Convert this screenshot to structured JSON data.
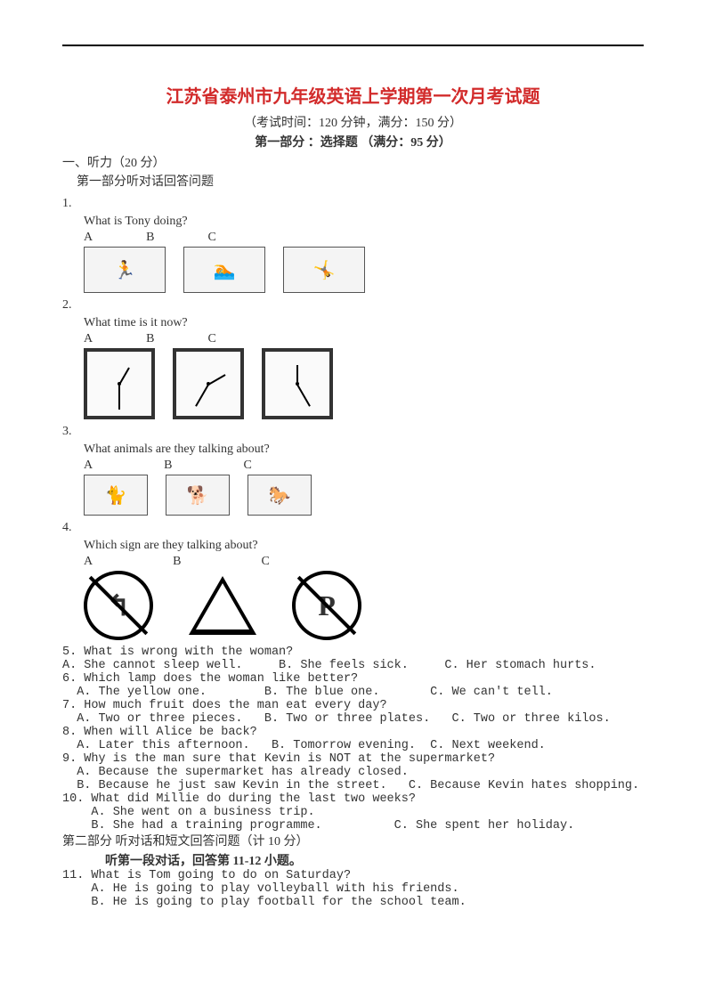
{
  "title": "江苏省泰州市九年级英语上学期第一次月考试题",
  "subtitle": "（考试时间：120 分钟，满分：150 分）",
  "part1": "第一部分 ：选择题 （满分：95 分）",
  "listening_header": "一、听力（20 分）",
  "listening_sub": "第一部分听对话回答问题",
  "q1": {
    "num": "1.",
    "text": "What is Tony doing?"
  },
  "q2": {
    "num": "2.",
    "text": "What time is it now?"
  },
  "q3": {
    "num": "3.",
    "text": "What animals are they talking about?"
  },
  "q4": {
    "num": "4.",
    "text": "Which sign are they talking about?"
  },
  "abc": {
    "a": "A",
    "b": "B",
    "c": "C"
  },
  "q5": "5. What is wrong with the woman?",
  "q5a": "A. She cannot sleep well.     B. She feels sick.     C. Her stomach hurts.",
  "q6": "6. Which lamp does the woman like better?",
  "q6a": "  A. The yellow one.        B. The blue one.       C. We can't tell.",
  "q7": "7. How much fruit does the man eat every day?",
  "q7a": "  A. Two or three pieces.   B. Two or three plates.   C. Two or three kilos.",
  "q8": "8. When will Alice be back?",
  "q8a": "  A. Later this afternoon.   B. Tomorrow evening.  C. Next weekend.",
  "q9": "9. Why is the man sure that Kevin is NOT at the supermarket?",
  "q9a": "  A. Because the supermarket has already closed.",
  "q9b": "  B. Because he just saw Kevin in the street.   C. Because Kevin hates shopping.",
  "q10": "10. What did Millie do during the last two weeks?",
  "q10a": "    A. She went on a business trip.",
  "q10b": "    B. She had a training programme.          C. She spent her holiday.",
  "part2_header": "第二部分  听对话和短文回答问题（计 10 分）",
  "part2_sub": "听第一段对话，回答第 11-12 小题。",
  "q11": "11. What is Tom going to do on Saturday?",
  "q11a": "    A. He is going to play volleyball with his friends.",
  "q11b": "    B. He is going to play football for the school team.",
  "sign_p": "P",
  "sign_arrow": "↰"
}
